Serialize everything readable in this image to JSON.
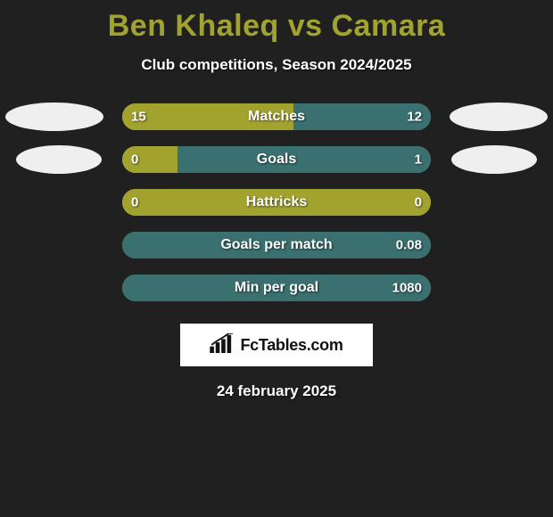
{
  "title": "Ben Khaleq vs Camara",
  "subtitle": "Club competitions, Season 2024/2025",
  "date": "24 february 2025",
  "logo_text": "FcTables.com",
  "colors": {
    "left": "#a2a32f",
    "right": "#3a7070",
    "ellipse": "#efefef",
    "background": "#202020",
    "title": "#a2a32f"
  },
  "rows": [
    {
      "metric": "Matches",
      "left_value": "15",
      "right_value": "12",
      "left_pct": 55.6,
      "right_pct": 44.4,
      "show_ellipses": true
    },
    {
      "metric": "Goals",
      "left_value": "0",
      "right_value": "1",
      "left_pct": 18,
      "right_pct": 82,
      "show_ellipses": true
    },
    {
      "metric": "Hattricks",
      "left_value": "0",
      "right_value": "0",
      "left_pct": 100,
      "right_pct": 0,
      "show_ellipses": false
    },
    {
      "metric": "Goals per match",
      "left_value": "",
      "right_value": "0.08",
      "left_pct": 0,
      "right_pct": 100,
      "show_ellipses": false
    },
    {
      "metric": "Min per goal",
      "left_value": "",
      "right_value": "1080",
      "left_pct": 0,
      "right_pct": 100,
      "show_ellipses": false
    }
  ]
}
